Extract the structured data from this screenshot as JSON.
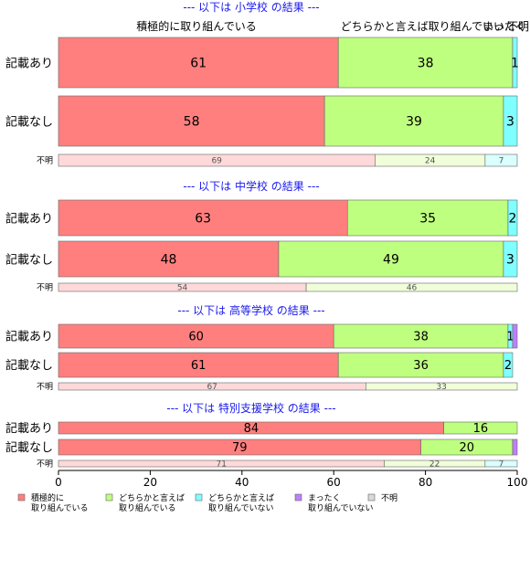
{
  "chart_data": {
    "type": "bar",
    "orientation": "horizontal",
    "stacked": "percent",
    "xlim": [
      0,
      100
    ],
    "x_ticks": [
      "0",
      "20",
      "40",
      "60",
      "80",
      "100"
    ],
    "colors": {
      "積極的に取り組んでいる": "#ff7f7f",
      "どちらかと言えば取り組んでいる": "#bfff7f",
      "どちらかと言えば取り組んでいない": "#7fffff",
      "まったく取り組んでいない": "#bf7fff",
      "不明": "#d9d9d9"
    },
    "top_labels": [
      "積極的に取り組んでいる",
      "どちらかと言えば取り組んでいい...",
      "まったく",
      "不明"
    ],
    "legend": {
      "position": "bottom-left",
      "items": [
        {
          "label": "積極的に\n取り組んでいる",
          "color": "#ff7f7f"
        },
        {
          "label": "どちらかと言えば\n取り組んでいる",
          "color": "#bfff7f"
        },
        {
          "label": "どちらかと言えば\n取り組んでいない",
          "color": "#7fffff"
        },
        {
          "label": "まったく\n取り組んでいない",
          "color": "#bf7fff"
        },
        {
          "label": "不明",
          "color": "#d9d9d9"
        }
      ]
    },
    "panels": [
      {
        "title": "--- 以下は 小学校 の結果 ---",
        "rows": [
          {
            "label": "記載あり",
            "values": [
              61,
              38,
              1,
              0,
              0
            ],
            "data_labels": [
              "61",
              "38",
              "1",
              "",
              ""
            ]
          },
          {
            "label": "記載なし",
            "values": [
              58,
              39,
              3,
              0,
              0
            ],
            "data_labels": [
              "58",
              "39",
              "3",
              "",
              ""
            ]
          },
          {
            "label": "不明",
            "values": [
              69,
              24,
              7,
              0,
              0
            ],
            "data_labels": [
              "69",
              "24",
              "7",
              "",
              ""
            ]
          }
        ]
      },
      {
        "title": "--- 以下は 中学校 の結果 ---",
        "rows": [
          {
            "label": "記載あり",
            "values": [
              63,
              35,
              2,
              0,
              0
            ],
            "data_labels": [
              "63",
              "35",
              "2",
              "",
              ""
            ]
          },
          {
            "label": "記載なし",
            "values": [
              48,
              49,
              3,
              0,
              0
            ],
            "data_labels": [
              "48",
              "49",
              "3",
              "",
              ""
            ]
          },
          {
            "label": "不明",
            "values": [
              54,
              46,
              0,
              0,
              0
            ],
            "data_labels": [
              "54",
              "46",
              "",
              "",
              ""
            ]
          }
        ]
      },
      {
        "title": "--- 以下は 高等学校 の結果 ---",
        "rows": [
          {
            "label": "記載あり",
            "values": [
              60,
              38,
              1,
              1,
              0
            ],
            "data_labels": [
              "60",
              "38",
              "1",
              "",
              ""
            ]
          },
          {
            "label": "記載なし",
            "values": [
              61,
              36,
              2,
              0,
              0
            ],
            "data_labels": [
              "61",
              "36",
              "2",
              "",
              ""
            ]
          },
          {
            "label": "不明",
            "values": [
              67,
              33,
              0,
              0,
              0
            ],
            "data_labels": [
              "67",
              "33",
              "",
              "",
              ""
            ]
          }
        ]
      },
      {
        "title": "--- 以下は 特別支援学校 の結果 ---",
        "rows": [
          {
            "label": "記載あり",
            "values": [
              84,
              16,
              0,
              0,
              0
            ],
            "data_labels": [
              "84",
              "16",
              "",
              "",
              ""
            ]
          },
          {
            "label": "記載なし",
            "values": [
              79,
              20,
              0,
              1,
              0
            ],
            "data_labels": [
              "79",
              "20",
              "",
              "",
              ""
            ]
          },
          {
            "label": "不明",
            "values": [
              71,
              22,
              7,
              0,
              0
            ],
            "data_labels": [
              "71",
              "22",
              "7",
              "",
              ""
            ]
          }
        ]
      }
    ]
  }
}
